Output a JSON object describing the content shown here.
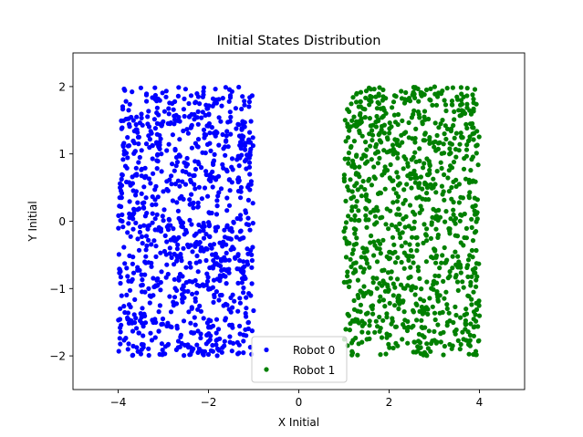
{
  "chart_data": {
    "type": "scatter",
    "title": "Initial States Distribution",
    "xlabel": "X Initial",
    "ylabel": "Y Initial",
    "xlim": [
      -5,
      5
    ],
    "ylim": [
      -2.5,
      2.5
    ],
    "xticks": [
      {
        "value": -4,
        "label": "−4"
      },
      {
        "value": -2,
        "label": "−2"
      },
      {
        "value": 0,
        "label": "0"
      },
      {
        "value": 2,
        "label": "2"
      },
      {
        "value": 4,
        "label": "4"
      }
    ],
    "yticks": [
      {
        "value": -2,
        "label": "−2"
      },
      {
        "value": -1,
        "label": "−1"
      },
      {
        "value": 0,
        "label": "0"
      },
      {
        "value": 1,
        "label": "1"
      },
      {
        "value": 2,
        "label": "2"
      }
    ],
    "grid": false,
    "legend_position": "bottom-center",
    "series": [
      {
        "name": "Robot 0",
        "color": "#0000ff",
        "x_range": [
          -4,
          -1
        ],
        "y_range": [
          -2,
          2
        ],
        "approx_count": 1000
      },
      {
        "name": "Robot 1",
        "color": "#008000",
        "x_range": [
          1,
          4
        ],
        "y_range": [
          -2,
          2
        ],
        "approx_count": 1000
      }
    ]
  }
}
